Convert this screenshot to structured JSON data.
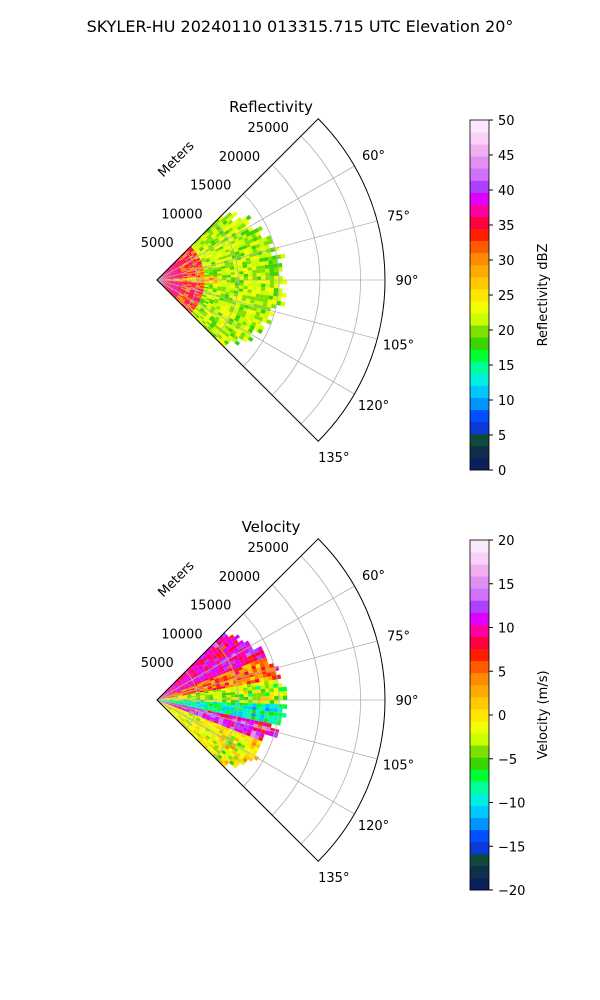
{
  "figure": {
    "suptitle": "SKYLER-HU  20240110  013315.715 UTC Elevation 20°"
  },
  "chart_data": [
    {
      "type": "heatmap",
      "projection": "polar-sector",
      "title": "Reflectivity",
      "radial_label": "Meters",
      "radial_ticks": [
        5000,
        10000,
        15000,
        20000,
        25000
      ],
      "radial_tick_labels": [
        "5000",
        "10000",
        "15000",
        "20000",
        "25000"
      ],
      "rlim": [
        0,
        28000
      ],
      "angular_ticks_deg": [
        60,
        75,
        90,
        105,
        120,
        135
      ],
      "angular_tick_labels": [
        "60°",
        "75°",
        "90°",
        "105°",
        "120°",
        "135°"
      ],
      "theta_range_deg": [
        45,
        135
      ],
      "grid": true,
      "colorbar": {
        "label": "Reflectivity dBZ",
        "range": [
          0,
          50
        ],
        "ticks": [
          0,
          5,
          10,
          15,
          20,
          25,
          30,
          35,
          40,
          45,
          50
        ],
        "tick_labels": [
          "0",
          "5",
          "10",
          "15",
          "20",
          "25",
          "30",
          "35",
          "40",
          "45",
          "50"
        ],
        "colors": [
          "#0b1f5c",
          "#0f2f4a",
          "#0f4a3a",
          "#0b3ad6",
          "#0050ff",
          "#0094ff",
          "#00c8ff",
          "#00f0e0",
          "#00ff9a",
          "#00ff30",
          "#3ad400",
          "#7ee000",
          "#c8ff00",
          "#f2ff00",
          "#ffe600",
          "#ffc800",
          "#ffaa00",
          "#ff8a00",
          "#ff5a00",
          "#ff1e00",
          "#ff0040",
          "#ff00a0",
          "#e000ff",
          "#b040ff",
          "#d070ff",
          "#e090f0",
          "#f0b0f0",
          "#f8d0f8",
          "#fce8fc"
        ]
      },
      "field": {
        "max_range_m": 16000,
        "levels_dbz": [
          18,
          22,
          28,
          34,
          38
        ]
      }
    },
    {
      "type": "heatmap",
      "projection": "polar-sector",
      "title": "Velocity",
      "radial_label": "Meters",
      "radial_ticks": [
        5000,
        10000,
        15000,
        20000,
        25000
      ],
      "radial_tick_labels": [
        "5000",
        "10000",
        "15000",
        "20000",
        "25000"
      ],
      "rlim": [
        0,
        28000
      ],
      "angular_ticks_deg": [
        60,
        75,
        90,
        105,
        120,
        135
      ],
      "angular_tick_labels": [
        "60°",
        "75°",
        "90°",
        "105°",
        "120°",
        "135°"
      ],
      "theta_range_deg": [
        45,
        135
      ],
      "grid": true,
      "colorbar": {
        "label": "Velocity (m/s)",
        "range": [
          -20,
          20
        ],
        "ticks": [
          -20,
          -15,
          -10,
          -5,
          0,
          5,
          10,
          15,
          20
        ],
        "tick_labels": [
          "−20",
          "−15",
          "−10",
          "−5",
          "0",
          "5",
          "10",
          "15",
          "20"
        ],
        "colors": [
          "#0b1f5c",
          "#0f2f4a",
          "#0f4a3a",
          "#0b3ad6",
          "#0050ff",
          "#0094ff",
          "#00c8ff",
          "#00f0e0",
          "#00ff9a",
          "#00ff30",
          "#3ad400",
          "#7ee000",
          "#c8ff00",
          "#f2ff00",
          "#ffe600",
          "#ffc800",
          "#ffaa00",
          "#ff8a00",
          "#ff5a00",
          "#ff1e00",
          "#ff0040",
          "#ff00a0",
          "#e000ff",
          "#b040ff",
          "#d070ff",
          "#e090f0",
          "#f0b0f0",
          "#f8d0f8",
          "#fce8fc"
        ]
      },
      "field": {
        "max_range_m": 16000,
        "levels_ms": [
          10,
          5,
          0,
          -5,
          -10,
          5,
          10
        ]
      }
    }
  ]
}
